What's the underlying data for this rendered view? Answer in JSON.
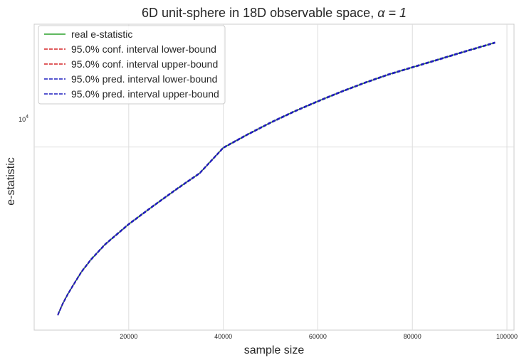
{
  "chart_data": {
    "type": "line",
    "title_prefix": "6D unit-sphere in 18D observable space, ",
    "title_alpha": "α = 1",
    "xlabel": "sample size",
    "ylabel": "e-statistic",
    "x_ticks": [
      20000,
      40000,
      60000,
      80000,
      100000
    ],
    "x_tick_labels": [
      "20000",
      "40000",
      "60000",
      "80000",
      "100000"
    ],
    "y_scale": "log",
    "y_tick_major": 10000,
    "y_tick_label_base": "10",
    "y_tick_label_exp": "4",
    "xlim": [
      0,
      101500
    ],
    "ylim": [
      2100,
      28500
    ],
    "grid": true,
    "legend_position": "top-left",
    "series": [
      {
        "name": "real e-statistic",
        "color": "#2ca02c",
        "dash": "solid"
      },
      {
        "name": "95.0% conf. interval lower-bound",
        "color": "#d62728",
        "dash": "dashed"
      },
      {
        "name": "95.0% conf. interval upper-bound",
        "color": "#d62728",
        "dash": "dashed"
      },
      {
        "name": "95.0% pred. interval lower-bound",
        "color": "#1f1fbf",
        "dash": "dashed"
      },
      {
        "name": "95.0% pred. interval upper-bound",
        "color": "#1f1fbf",
        "dash": "dashed"
      }
    ],
    "curve": {
      "x": [
        5000,
        6000,
        7000,
        8000,
        10000,
        12000,
        15000,
        20000,
        25000,
        30000,
        35000,
        40000,
        45000,
        50000,
        55000,
        60000,
        65000,
        70000,
        75000,
        80000,
        85000,
        90000,
        97500
      ],
      "y": [
        2390,
        2620,
        2830,
        3030,
        3450,
        3830,
        4360,
        5180,
        6020,
        6960,
        8000,
        9940,
        11100,
        12310,
        13540,
        14770,
        16040,
        17310,
        18570,
        19730,
        20960,
        22280,
        24360
      ]
    }
  }
}
